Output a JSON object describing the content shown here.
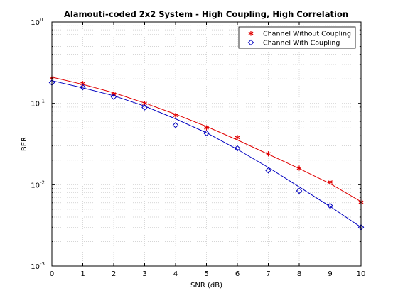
{
  "chart_data": {
    "type": "line",
    "title": "Alamouti-coded 2x2 System - High Coupling, High Correlation",
    "xlabel": "SNR (dB)",
    "ylabel": "BER",
    "xlim": [
      0,
      10
    ],
    "ylim": [
      0.001,
      1
    ],
    "yscale": "log",
    "x_ticks": [
      0,
      1,
      2,
      3,
      4,
      5,
      6,
      7,
      8,
      9,
      10
    ],
    "y_ticks": [
      {
        "base": "10",
        "exp": "-3",
        "value": 0.001
      },
      {
        "base": "10",
        "exp": "-2",
        "value": 0.01
      },
      {
        "base": "10",
        "exp": "-1",
        "value": 0.1
      },
      {
        "base": "10",
        "exp": "0",
        "value": 1
      }
    ],
    "grid": true,
    "legend_position": "top-right",
    "series": [
      {
        "name": "Channel Without Coupling",
        "color": "#e00000",
        "marker": "asterisk",
        "markers": [
          [
            0,
            0.205
          ],
          [
            1,
            0.175
          ],
          [
            2,
            0.13
          ],
          [
            3,
            0.1
          ],
          [
            4,
            0.071
          ],
          [
            5,
            0.05
          ],
          [
            6,
            0.038
          ],
          [
            7,
            0.024
          ],
          [
            8,
            0.016
          ],
          [
            9,
            0.0108
          ],
          [
            10,
            0.0061
          ]
        ],
        "curve": [
          [
            0,
            0.21
          ],
          [
            1,
            0.171
          ],
          [
            2,
            0.135
          ],
          [
            3,
            0.101
          ],
          [
            4,
            0.0735
          ],
          [
            5,
            0.052
          ],
          [
            6,
            0.0355
          ],
          [
            7,
            0.0237
          ],
          [
            8,
            0.0158
          ],
          [
            9,
            0.0103
          ],
          [
            10,
            0.0062
          ]
        ]
      },
      {
        "name": "Channel With Coupling",
        "color": "#0000c0",
        "marker": "diamond",
        "markers": [
          [
            0,
            0.18
          ],
          [
            1,
            0.158
          ],
          [
            2,
            0.12
          ],
          [
            3,
            0.089
          ],
          [
            4,
            0.054
          ],
          [
            5,
            0.043
          ],
          [
            6,
            0.028
          ],
          [
            7,
            0.015
          ],
          [
            8,
            0.0084
          ],
          [
            9,
            0.0055
          ],
          [
            10,
            0.003
          ]
        ],
        "curve": [
          [
            0,
            0.19
          ],
          [
            1,
            0.155
          ],
          [
            2,
            0.124
          ],
          [
            3,
            0.0925
          ],
          [
            4,
            0.0645
          ],
          [
            5,
            0.0435
          ],
          [
            6,
            0.0272
          ],
          [
            7,
            0.0163
          ],
          [
            8,
            0.0094
          ],
          [
            9,
            0.0054
          ],
          [
            10,
            0.003
          ]
        ]
      }
    ]
  }
}
